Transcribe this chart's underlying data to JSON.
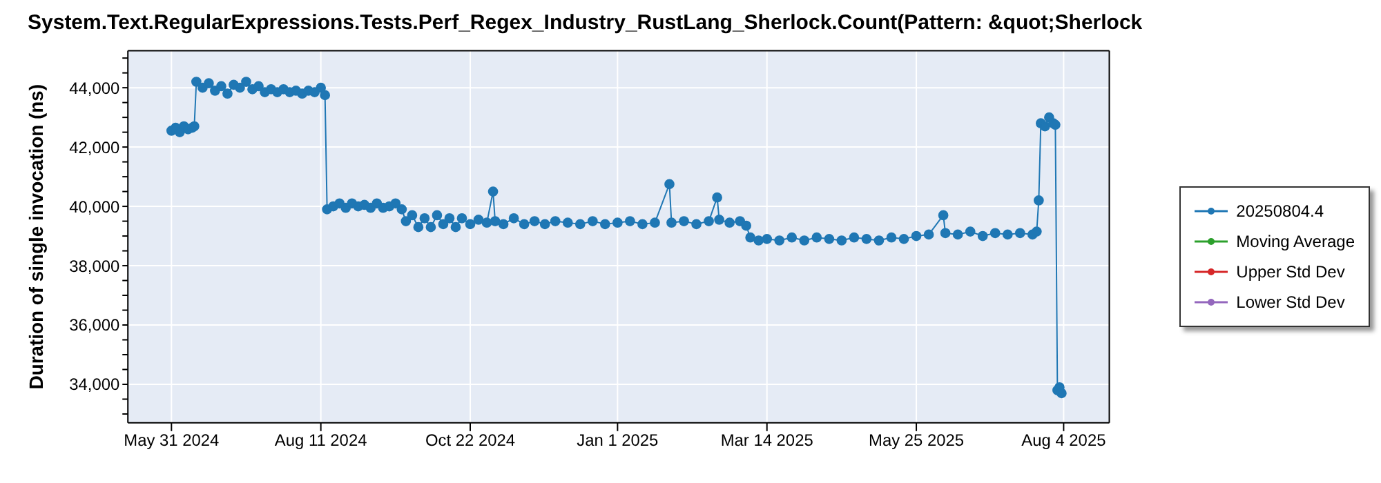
{
  "chart_data": {
    "type": "line",
    "title": "System.Text.RegularExpressions.Tests.Perf_Regex_Industry_RustLang_Sherlock.Count(Pattern: &quot;Sherlock",
    "ylabel": "Duration of single invocation (ns)",
    "x": [
      "2024-05-31",
      "2024-06-02",
      "2024-06-04",
      "2024-06-06",
      "2024-06-08",
      "2024-06-10",
      "2024-06-11",
      "2024-06-12",
      "2024-06-15",
      "2024-06-18",
      "2024-06-21",
      "2024-06-24",
      "2024-06-27",
      "2024-06-30",
      "2024-07-03",
      "2024-07-06",
      "2024-07-09",
      "2024-07-12",
      "2024-07-15",
      "2024-07-18",
      "2024-07-21",
      "2024-07-24",
      "2024-07-27",
      "2024-07-30",
      "2024-08-02",
      "2024-08-05",
      "2024-08-08",
      "2024-08-11",
      "2024-08-13",
      "2024-08-14",
      "2024-08-17",
      "2024-08-20",
      "2024-08-23",
      "2024-08-26",
      "2024-08-29",
      "2024-09-01",
      "2024-09-04",
      "2024-09-07",
      "2024-09-10",
      "2024-09-13",
      "2024-09-16",
      "2024-09-19",
      "2024-09-21",
      "2024-09-24",
      "2024-09-27",
      "2024-09-30",
      "2024-10-03",
      "2024-10-06",
      "2024-10-09",
      "2024-10-12",
      "2024-10-15",
      "2024-10-18",
      "2024-10-22",
      "2024-10-26",
      "2024-10-30",
      "2024-11-02",
      "2024-11-03",
      "2024-11-07",
      "2024-11-12",
      "2024-11-17",
      "2024-11-22",
      "2024-11-27",
      "2024-12-02",
      "2024-12-08",
      "2024-12-14",
      "2024-12-20",
      "2024-12-26",
      "2025-01-01",
      "2025-01-07",
      "2025-01-13",
      "2025-01-19",
      "2025-01-26",
      "2025-01-27",
      "2025-02-02",
      "2025-02-08",
      "2025-02-14",
      "2025-02-18",
      "2025-02-19",
      "2025-02-24",
      "2025-03-01",
      "2025-03-04",
      "2025-03-06",
      "2025-03-10",
      "2025-03-14",
      "2025-03-20",
      "2025-03-26",
      "2025-04-01",
      "2025-04-07",
      "2025-04-13",
      "2025-04-19",
      "2025-04-25",
      "2025-05-01",
      "2025-05-07",
      "2025-05-13",
      "2025-05-19",
      "2025-05-25",
      "2025-05-31",
      "2025-06-07",
      "2025-06-08",
      "2025-06-14",
      "2025-06-20",
      "2025-06-26",
      "2025-07-02",
      "2025-07-08",
      "2025-07-14",
      "2025-07-20",
      "2025-07-22",
      "2025-07-23",
      "2025-07-24",
      "2025-07-26",
      "2025-07-28",
      "2025-07-30",
      "2025-07-31",
      "2025-08-01",
      "2025-08-02",
      "2025-08-03"
    ],
    "series": [
      {
        "name": "20250804.4",
        "color": "#1f77b4",
        "values": [
          42550,
          42650,
          42500,
          42700,
          42600,
          42650,
          42700,
          44200,
          44000,
          44150,
          43900,
          44050,
          43800,
          44100,
          44000,
          44200,
          43950,
          44050,
          43850,
          43950,
          43850,
          43950,
          43850,
          43900,
          43800,
          43900,
          43850,
          44000,
          43750,
          39900,
          40000,
          40100,
          39950,
          40100,
          40000,
          40050,
          39950,
          40100,
          39950,
          40000,
          40100,
          39900,
          39500,
          39700,
          39300,
          39600,
          39300,
          39700,
          39400,
          39600,
          39300,
          39600,
          39400,
          39550,
          39450,
          40500,
          39500,
          39400,
          39600,
          39400,
          39500,
          39400,
          39500,
          39450,
          39400,
          39500,
          39400,
          39450,
          39500,
          39400,
          39450,
          40750,
          39450,
          39500,
          39400,
          39500,
          40300,
          39550,
          39450,
          39500,
          39350,
          38950,
          38850,
          38900,
          38850,
          38950,
          38850,
          38950,
          38900,
          38850,
          38950,
          38900,
          38850,
          38950,
          38900,
          39000,
          39050,
          39700,
          39100,
          39050,
          39150,
          39000,
          39100,
          39050,
          39100,
          39050,
          39150,
          40200,
          42800,
          42700,
          43000,
          42800,
          42750,
          33800,
          33900,
          33700
        ]
      },
      {
        "name": "Moving Average",
        "color": "#2ca02c",
        "values": [
          null,
          null,
          null,
          null,
          null,
          null,
          null,
          null,
          null,
          null,
          null,
          null,
          null,
          null,
          null,
          null,
          null,
          null,
          null,
          null,
          null,
          null,
          null,
          null,
          null,
          null,
          null,
          null,
          null,
          null,
          null,
          null,
          null,
          null,
          null,
          null,
          null,
          null,
          null,
          null,
          null,
          null,
          null,
          null,
          null,
          null,
          null,
          null,
          null,
          null,
          null,
          null,
          null,
          null,
          null,
          null,
          null,
          null,
          null,
          null,
          null,
          null,
          null,
          null,
          null,
          null,
          null,
          null,
          null,
          null,
          null,
          null,
          null,
          null,
          null,
          null,
          null,
          null,
          null,
          null,
          null,
          null,
          null,
          null,
          null,
          null,
          null,
          null,
          null,
          null,
          null,
          null,
          null,
          null,
          null,
          null,
          null,
          null,
          null,
          null,
          null,
          null,
          null,
          null,
          null,
          null,
          null,
          null,
          null,
          null,
          null,
          null,
          null,
          null,
          null,
          null
        ]
      },
      {
        "name": "Upper Std Dev",
        "color": "#d62728",
        "values": [
          null,
          null,
          null,
          null,
          null,
          null,
          null,
          null,
          null,
          null,
          null,
          null,
          null,
          null,
          null,
          null,
          null,
          null,
          null,
          null,
          null,
          null,
          null,
          null,
          null,
          null,
          null,
          null,
          null,
          null,
          null,
          null,
          null,
          null,
          null,
          null,
          null,
          null,
          null,
          null,
          null,
          null,
          null,
          null,
          null,
          null,
          null,
          null,
          null,
          null,
          null,
          null,
          null,
          null,
          null,
          null,
          null,
          null,
          null,
          null,
          null,
          null,
          null,
          null,
          null,
          null,
          null,
          null,
          null,
          null,
          null,
          null,
          null,
          null,
          null,
          null,
          null,
          null,
          null,
          null,
          null,
          null,
          null,
          null,
          null,
          null,
          null,
          null,
          null,
          null,
          null,
          null,
          null,
          null,
          null,
          null,
          null,
          null,
          null,
          null,
          null,
          null,
          null,
          null,
          null,
          null,
          null,
          null,
          null,
          null,
          null,
          null,
          null,
          null,
          null,
          null
        ]
      },
      {
        "name": "Lower Std Dev",
        "color": "#9467bd",
        "values": [
          null,
          null,
          null,
          null,
          null,
          null,
          null,
          null,
          null,
          null,
          null,
          null,
          null,
          null,
          null,
          null,
          null,
          null,
          null,
          null,
          null,
          null,
          null,
          null,
          null,
          null,
          null,
          null,
          null,
          null,
          null,
          null,
          null,
          null,
          null,
          null,
          null,
          null,
          null,
          null,
          null,
          null,
          null,
          null,
          null,
          null,
          null,
          null,
          null,
          null,
          null,
          null,
          null,
          null,
          null,
          null,
          null,
          null,
          null,
          null,
          null,
          null,
          null,
          null,
          null,
          null,
          null,
          null,
          null,
          null,
          null,
          null,
          null,
          null,
          null,
          null,
          null,
          null,
          null,
          null,
          null,
          null,
          null,
          null,
          null,
          null,
          null,
          null,
          null,
          null,
          null,
          null,
          null,
          null,
          null,
          null,
          null,
          null,
          null,
          null,
          null,
          null,
          null,
          null,
          null,
          null,
          null,
          null,
          null,
          null,
          null,
          null,
          null,
          null,
          null,
          null
        ]
      }
    ],
    "xlim": [
      "2024-05-10",
      "2025-08-26"
    ],
    "xticks": [
      {
        "value": "2024-05-31",
        "label": "May 31 2024"
      },
      {
        "value": "2024-08-11",
        "label": "Aug 11 2024"
      },
      {
        "value": "2024-10-22",
        "label": "Oct 22 2024"
      },
      {
        "value": "2025-01-01",
        "label": "Jan 1 2025"
      },
      {
        "value": "2025-03-14",
        "label": "Mar 14 2025"
      },
      {
        "value": "2025-05-25",
        "label": "May 25 2025"
      },
      {
        "value": "2025-08-04",
        "label": "Aug 4 2025"
      }
    ],
    "ylim": [
      32700,
      45250
    ],
    "yticks": [
      {
        "value": 33000,
        "label": null
      },
      {
        "value": 33500,
        "label": null
      },
      {
        "value": 34000,
        "label": "34,000"
      },
      {
        "value": 34500,
        "label": null
      },
      {
        "value": 35000,
        "label": null
      },
      {
        "value": 35500,
        "label": null
      },
      {
        "value": 36000,
        "label": "36,000"
      },
      {
        "value": 36500,
        "label": null
      },
      {
        "value": 37000,
        "label": null
      },
      {
        "value": 37500,
        "label": null
      },
      {
        "value": 38000,
        "label": "38,000"
      },
      {
        "value": 38500,
        "label": null
      },
      {
        "value": 39000,
        "label": null
      },
      {
        "value": 39500,
        "label": null
      },
      {
        "value": 40000,
        "label": "40,000"
      },
      {
        "value": 40500,
        "label": null
      },
      {
        "value": 41000,
        "label": null
      },
      {
        "value": 41500,
        "label": null
      },
      {
        "value": 42000,
        "label": "42,000"
      },
      {
        "value": 42500,
        "label": null
      },
      {
        "value": 43000,
        "label": null
      },
      {
        "value": 43500,
        "label": null
      },
      {
        "value": 44000,
        "label": "44,000"
      },
      {
        "value": 44500,
        "label": null
      },
      {
        "value": 45000,
        "label": null
      }
    ],
    "grid": true,
    "legend": "right",
    "marker": "circle",
    "line_style": "solid"
  }
}
